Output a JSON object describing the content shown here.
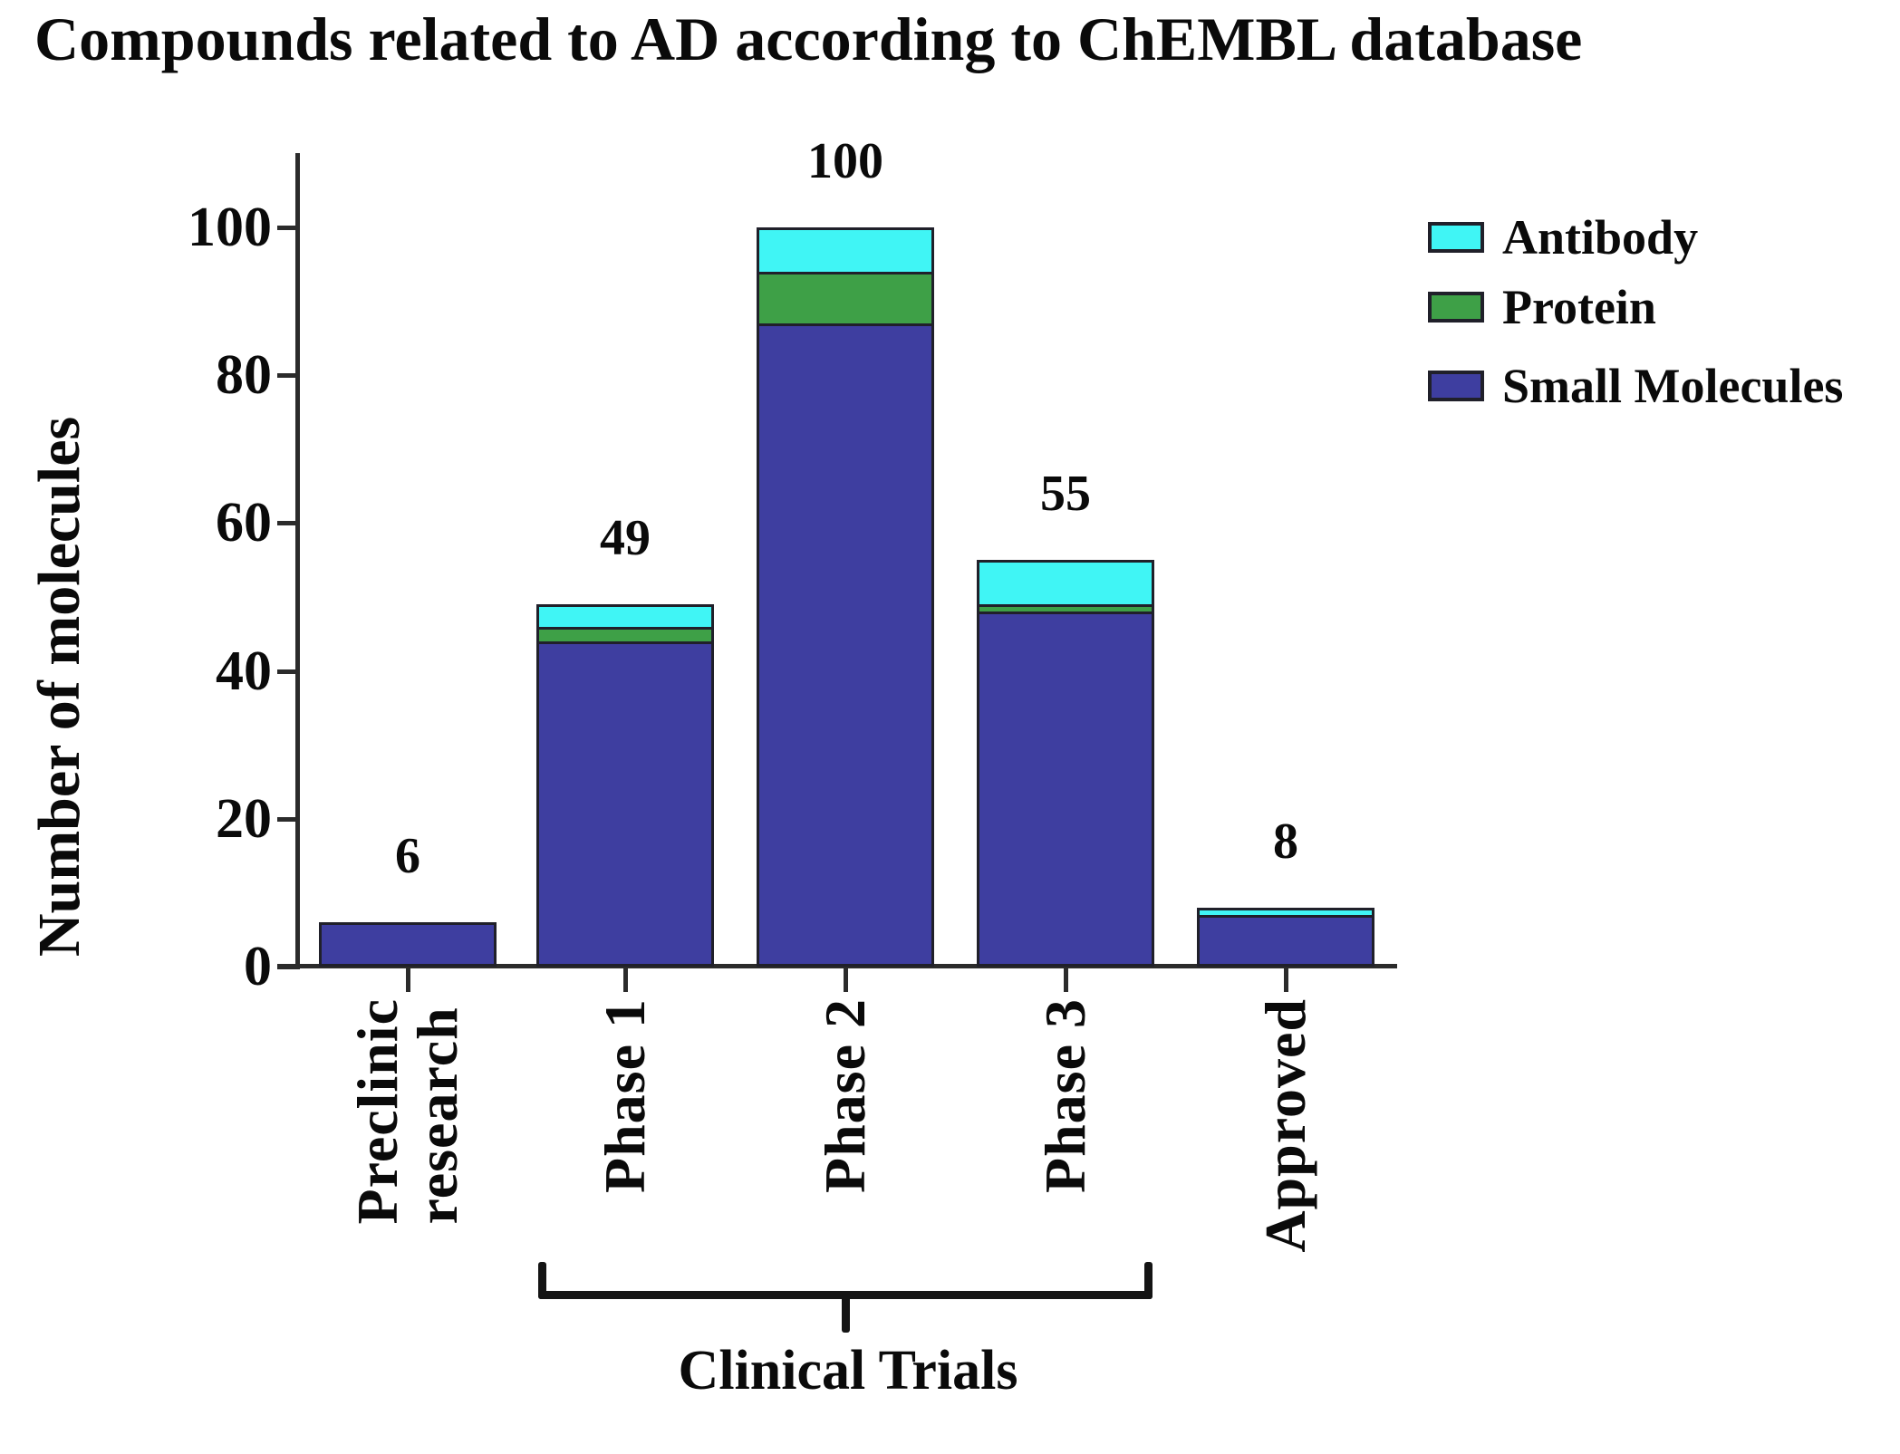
{
  "title": "Compounds related to AD according to ChEMBL database",
  "y_axis": {
    "label": "Number of molecules"
  },
  "x_axis": {
    "group_label": "Clinical Trials"
  },
  "legend": [
    {
      "label": "Antibody",
      "color": "#40F5F5"
    },
    {
      "label": "Protein",
      "color": "#3EA047"
    },
    {
      "label": "Small Molecules",
      "color": "#3E3EA0"
    }
  ],
  "chart_data": {
    "type": "bar",
    "stacked": true,
    "title": "Compounds related to AD according to ChEMBL database",
    "xlabel": "",
    "ylabel": "Number of molecules",
    "ylim": [
      0,
      110
    ],
    "yticks": [
      0,
      20,
      40,
      60,
      80,
      100
    ],
    "grid": false,
    "legend_position": "right",
    "categories": [
      "Preclinic\nresearch",
      "Phase 1",
      "Phase 2",
      "Phase 3",
      "Approved"
    ],
    "series": [
      {
        "name": "Small Molecules",
        "color": "#3E3EA0",
        "values": [
          6,
          44,
          87,
          48,
          7
        ]
      },
      {
        "name": "Protein",
        "color": "#3EA047",
        "values": [
          0,
          2,
          7,
          1,
          0
        ]
      },
      {
        "name": "Antibody",
        "color": "#40F5F5",
        "values": [
          0,
          3,
          6,
          6,
          1
        ]
      }
    ],
    "totals": [
      6,
      49,
      100,
      55,
      8
    ],
    "annotations": {
      "bracket": {
        "from": "Phase 1",
        "to": "Phase 3",
        "label": "Clinical Trials"
      }
    }
  }
}
